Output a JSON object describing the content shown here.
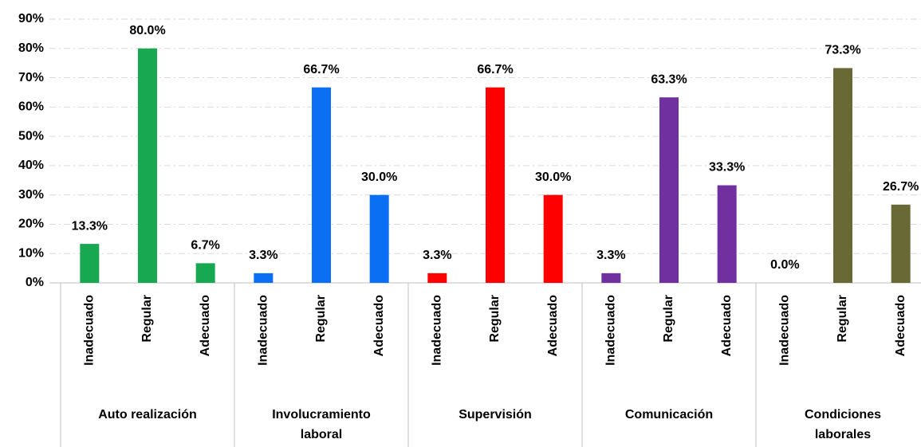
{
  "chart_data": {
    "type": "grouped_bar",
    "ylim": [
      0,
      90
    ],
    "yticks": [
      {
        "value": 0,
        "label": "0%"
      },
      {
        "value": 10,
        "label": "10%"
      },
      {
        "value": 20,
        "label": "20%"
      },
      {
        "value": 30,
        "label": "30%"
      },
      {
        "value": 40,
        "label": "40%"
      },
      {
        "value": 50,
        "label": "50%"
      },
      {
        "value": 60,
        "label": "60%"
      },
      {
        "value": 70,
        "label": "70%"
      },
      {
        "value": 80,
        "label": "80%"
      },
      {
        "value": 90,
        "label": "90%"
      }
    ],
    "grid": true,
    "groups": [
      {
        "label_lines": [
          "Auto realización"
        ],
        "color": "#19a852",
        "categories": [
          "Inadecuado",
          "Regular",
          "Adecuado"
        ],
        "values": [
          13.3,
          80.0,
          6.7
        ],
        "value_labels": [
          "13.3%",
          "80.0%",
          "6.7%"
        ]
      },
      {
        "label_lines": [
          "Involucramiento",
          "laboral"
        ],
        "color": "#0a6ff2",
        "categories": [
          "Inadecuado",
          "Regular",
          "Adecuado"
        ],
        "values": [
          3.3,
          66.7,
          30.0
        ],
        "value_labels": [
          "3.3%",
          "66.7%",
          "30.0%"
        ]
      },
      {
        "label_lines": [
          "Supervisión"
        ],
        "color": "#ff0000",
        "categories": [
          "Inadecuado",
          "Regular",
          "Adecuado"
        ],
        "values": [
          3.3,
          66.7,
          30.0
        ],
        "value_labels": [
          "3.3%",
          "66.7%",
          "30.0%"
        ]
      },
      {
        "label_lines": [
          "Comunicación"
        ],
        "color": "#7030a0",
        "categories": [
          "Inadecuado",
          "Regular",
          "Adecuado"
        ],
        "values": [
          3.3,
          63.3,
          33.3
        ],
        "value_labels": [
          "3.3%",
          "63.3%",
          "33.3%"
        ]
      },
      {
        "label_lines": [
          "Condiciones",
          "laborales"
        ],
        "color": "#696935",
        "categories": [
          "Inadecuado",
          "Regular",
          "Adecuado"
        ],
        "values": [
          0.0,
          73.3,
          26.7
        ],
        "value_labels": [
          "0.0%",
          "73.3%",
          "26.7%"
        ]
      }
    ]
  }
}
